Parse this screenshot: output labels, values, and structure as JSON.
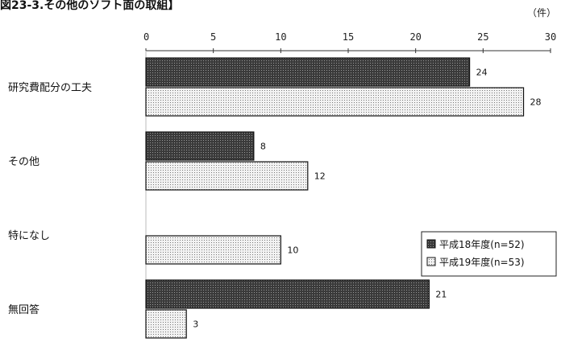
{
  "title_fragment": "図23-3.その他のソフト面の取組】",
  "chart_data": {
    "type": "bar",
    "orientation": "horizontal",
    "unit": "（件）",
    "categories": [
      "研究費配分の工夫",
      "その他",
      "特になし",
      "無回答"
    ],
    "series": [
      {
        "name": "平成18年度(n=52)",
        "values": [
          24,
          8,
          null,
          21
        ],
        "color": "#3a3a3a"
      },
      {
        "name": "平成19年度(n=53)",
        "values": [
          28,
          12,
          10,
          3
        ],
        "color": "#e4e4e4"
      }
    ],
    "xlim": [
      0,
      30
    ],
    "xticks": [
      0,
      5,
      10,
      15,
      20,
      25,
      30
    ],
    "grid": false,
    "legend_position": "right"
  }
}
